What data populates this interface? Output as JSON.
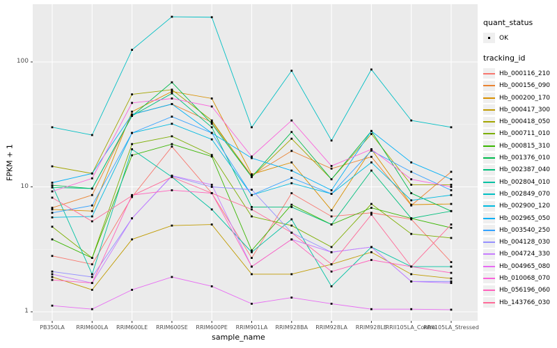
{
  "chart_data": {
    "type": "line",
    "title": "",
    "xlabel": "sample_name",
    "ylabel": "FPKM + 1",
    "y_scale": "log10",
    "y_ticks": [
      1,
      10,
      100
    ],
    "y_minor_breaks": [
      3.162,
      31.62
    ],
    "ylim": [
      0.86,
      290
    ],
    "grid": true,
    "panel_bg": "#EBEBEB",
    "grid_color": "#FFFFFF",
    "tick_text_color": "#4d4d4d",
    "point_color": "#000000",
    "legend_position": "right",
    "categories": [
      "PB350LA",
      "RRIM600LA",
      "RRIM600LE",
      "RRIM600SE",
      "RRIM600PE",
      "RRIM901LA",
      "RRIM928BA",
      "RRIM928LA",
      "RRIM928LE",
      "RRII105LA_Control",
      "RRII105LA_Stressed"
    ],
    "series": [
      {
        "name": "Hb_000116_210",
        "color": "#F8766D",
        "values": [
          2.8,
          2.4,
          8.3,
          21,
          8.9,
          2.7,
          8.9,
          5.8,
          6.2,
          5.5,
          2.5
        ]
      },
      {
        "name": "Hb_000156_090",
        "color": "#EA8331",
        "values": [
          6.8,
          8.6,
          38,
          46,
          33,
          12.3,
          19.4,
          14,
          17.4,
          7.1,
          13.2
        ]
      },
      {
        "name": "Hb_000200_170",
        "color": "#D89000",
        "values": [
          6.6,
          6.4,
          40,
          58,
          51,
          12.6,
          15.7,
          6.5,
          20,
          7.2,
          7.3
        ]
      },
      {
        "name": "Hb_000417_300",
        "color": "#C09B00",
        "values": [
          1.9,
          1.5,
          3.8,
          4.9,
          5.0,
          2.0,
          2.0,
          2.4,
          3.0,
          2.0,
          1.85
        ]
      },
      {
        "name": "Hb_000418_050",
        "color": "#A3A500",
        "values": [
          14.6,
          12.8,
          55,
          60,
          34,
          12.0,
          24.3,
          11.5,
          26.5,
          10.4,
          10.4
        ]
      },
      {
        "name": "Hb_000711_010",
        "color": "#7CAE00",
        "values": [
          4.8,
          2.7,
          22,
          25.4,
          18,
          5.8,
          4.9,
          3.3,
          7.3,
          4.2,
          3.9
        ]
      },
      {
        "name": "Hb_000815_310",
        "color": "#39B600",
        "values": [
          3.8,
          2.7,
          17.9,
          22,
          17.5,
          3.1,
          7.2,
          5.0,
          6.8,
          5.6,
          4.7
        ]
      },
      {
        "name": "Hb_001376_010",
        "color": "#00BB4E",
        "values": [
          10.3,
          9.7,
          37,
          68.7,
          32,
          12.0,
          27.5,
          11.5,
          28,
          8.9,
          6.4
        ]
      },
      {
        "name": "Hb_002387_040",
        "color": "#00BF7D",
        "values": [
          9.9,
          9.7,
          37,
          56,
          30,
          6.9,
          6.9,
          5.0,
          13.5,
          5.6,
          6.4
        ]
      },
      {
        "name": "Hb_002804_010",
        "color": "#00C1A3",
        "values": [
          10.3,
          2.0,
          20,
          12,
          6.6,
          3.0,
          5.5,
          1.6,
          3.3,
          2.3,
          2.3
        ]
      },
      {
        "name": "Hb_002849_070",
        "color": "#00BFC4",
        "values": [
          30,
          26,
          125,
          230,
          228,
          30,
          85,
          23.5,
          87,
          34,
          30
        ]
      },
      {
        "name": "Hb_002900_120",
        "color": "#00BAE0",
        "values": [
          5.7,
          5.8,
          27,
          32,
          24,
          8.6,
          10.7,
          8.8,
          15.7,
          7.8,
          8.6
        ]
      },
      {
        "name": "Hb_002965_050",
        "color": "#00B0F6",
        "values": [
          10.8,
          12.8,
          38,
          46,
          27,
          17,
          13.5,
          9.4,
          28,
          15.7,
          11.5
        ]
      },
      {
        "name": "Hb_003540_250",
        "color": "#35A2FF",
        "values": [
          6.2,
          7.1,
          27,
          36.5,
          27,
          8.6,
          11.8,
          8.8,
          19.5,
          13.2,
          9.4
        ]
      },
      {
        "name": "Hb_004128_030",
        "color": "#9590FF",
        "values": [
          2.1,
          1.9,
          5.6,
          12.2,
          10,
          9.5,
          4.3,
          3.0,
          3.3,
          1.75,
          1.75
        ]
      },
      {
        "name": "Hb_004724_330",
        "color": "#C77CFF",
        "values": [
          2.0,
          1.7,
          5.6,
          12.3,
          10.4,
          2.3,
          3.8,
          3.0,
          3.3,
          1.75,
          1.7
        ]
      },
      {
        "name": "Hb_004965_080",
        "color": "#E76BF3",
        "values": [
          1.12,
          1.05,
          1.5,
          1.9,
          1.6,
          1.16,
          1.3,
          1.16,
          1.05,
          1.05,
          1.04
        ]
      },
      {
        "name": "Hb_010068_070",
        "color": "#FA62DB",
        "values": [
          9.2,
          11.7,
          47,
          51,
          44,
          17.5,
          34,
          14.7,
          20,
          11.5,
          10
        ]
      },
      {
        "name": "Hb_056196_060",
        "color": "#FF62BC",
        "values": [
          1.8,
          1.7,
          8.6,
          9.4,
          8.9,
          2.3,
          3.8,
          2.1,
          2.6,
          2.3,
          2.05
        ]
      },
      {
        "name": "Hb_143766_030",
        "color": "#FF6A98",
        "values": [
          8.2,
          5.3,
          8.5,
          12,
          8.9,
          6.6,
          4.3,
          2.4,
          6.0,
          2.3,
          5.0
        ]
      }
    ]
  },
  "legend": {
    "quant_status_title": "quant_status",
    "quant_status_items": [
      "OK"
    ],
    "tracking_title": "tracking_id"
  }
}
